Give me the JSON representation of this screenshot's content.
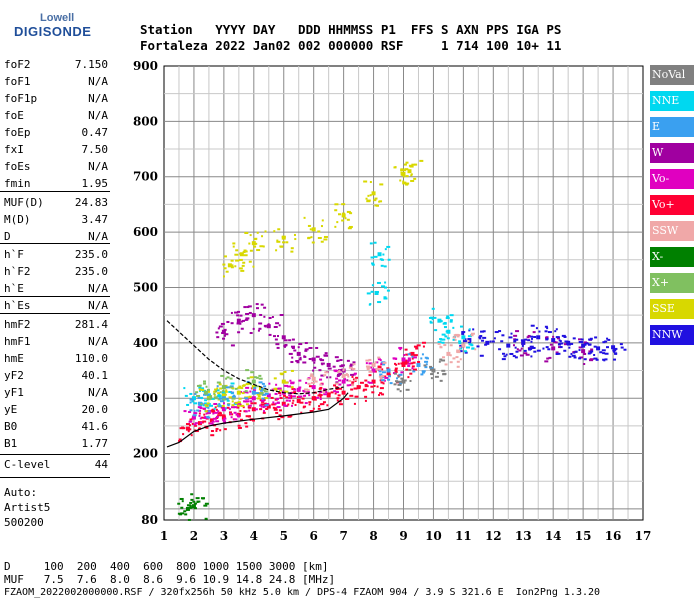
{
  "logo": {
    "top": "Lowell",
    "main": "DIGISONDE"
  },
  "header": {
    "line1": "Station   YYYY DAY   DDD HHMMSS P1  FFS S AXN PPS IGA PS",
    "line2": "Fortaleza 2022 Jan02 002 000000 RSF     1 714 100 10+ 11"
  },
  "params_group1": [
    {
      "name": "foF2",
      "value": "7.150"
    },
    {
      "name": "foF1",
      "value": "N/A"
    },
    {
      "name": "foF1p",
      "value": "N/A"
    },
    {
      "name": "foE",
      "value": "N/A"
    },
    {
      "name": "foEp",
      "value": "0.47"
    },
    {
      "name": "fxI",
      "value": "7.50"
    },
    {
      "name": "foEs",
      "value": "N/A"
    },
    {
      "name": "fmin",
      "value": "1.95"
    }
  ],
  "params_group2": [
    {
      "name": "MUF(D)",
      "value": "24.83"
    },
    {
      "name": "M(D)",
      "value": "3.47"
    },
    {
      "name": "D",
      "value": "N/A"
    }
  ],
  "params_group3": [
    {
      "name": "h`F",
      "value": "235.0"
    },
    {
      "name": "h`F2",
      "value": "235.0"
    },
    {
      "name": "h`E",
      "value": "N/A"
    },
    {
      "name": "h`Es",
      "value": "N/A"
    }
  ],
  "params_group4": [
    {
      "name": "hmF2",
      "value": "281.4"
    },
    {
      "name": "hmF1",
      "value": "N/A"
    },
    {
      "name": "hmE",
      "value": "110.0"
    },
    {
      "name": "yF2",
      "value": "40.1"
    },
    {
      "name": "yF1",
      "value": "N/A"
    },
    {
      "name": "yE",
      "value": "20.0"
    },
    {
      "name": "B0",
      "value": "41.6"
    },
    {
      "name": "B1",
      "value": "1.77"
    }
  ],
  "params_group5": [
    {
      "name": "C-level",
      "value": "44"
    }
  ],
  "auto_lines": [
    "Auto:",
    "Artist5",
    "500200"
  ],
  "legend": [
    {
      "label": "NoVal",
      "color": "#808080"
    },
    {
      "label": "NNE",
      "color": "#00d8f0"
    },
    {
      "label": "E",
      "color": "#3aa0f0"
    },
    {
      "label": "W",
      "color": "#a000a0"
    },
    {
      "label": "Vo-",
      "color": "#e000c0"
    },
    {
      "label": "Vo+",
      "color": "#ff0033"
    },
    {
      "label": "SSW",
      "color": "#f0a8a8"
    },
    {
      "label": "X-",
      "color": "#008000"
    },
    {
      "label": "X+",
      "color": "#80c060"
    },
    {
      "label": "SSE",
      "color": "#d8d800"
    },
    {
      "label": "NNW",
      "color": "#2010e0"
    }
  ],
  "footer": {
    "line1": "D     100  200  400  600  800 1000 1500 3000 [km]",
    "line2": "MUF   7.5  7.6  8.0  8.6  9.6 10.9 14.8 24.8 [MHz]",
    "line3": "FZAOM_2022002000000.RSF / 320fx256h 50 kHz 5.0 km / DPS-4 FZAOM 904 / 3.9 S 321.6 E  Ion2Png 1.3.20"
  },
  "chart_data": {
    "type": "scatter",
    "title": "",
    "xlabel": "",
    "ylabel": "",
    "xlim": [
      1,
      17
    ],
    "ylim": [
      80,
      900
    ],
    "x_ticks": [
      1,
      2,
      3,
      4,
      5,
      6,
      7,
      8,
      9,
      10,
      11,
      12,
      13,
      14,
      15,
      16,
      17
    ],
    "y_ticks": [
      80,
      200,
      300,
      400,
      500,
      600,
      700,
      800,
      900
    ],
    "grid": true,
    "series": [
      {
        "name": "Vo+",
        "color": "#ff0033",
        "points": [
          [
            1.8,
            245
          ],
          [
            2.2,
            255
          ],
          [
            2.6,
            260
          ],
          [
            3,
            265
          ],
          [
            3.5,
            270
          ],
          [
            4,
            280
          ],
          [
            4.5,
            285
          ],
          [
            5,
            290
          ],
          [
            5.5,
            295
          ],
          [
            6,
            300
          ],
          [
            6.5,
            305
          ],
          [
            7,
            310
          ],
          [
            7.5,
            320
          ],
          [
            8,
            330
          ],
          [
            8.5,
            345
          ],
          [
            9,
            360
          ],
          [
            9.3,
            380
          ]
        ]
      },
      {
        "name": "Vo-",
        "color": "#e000c0",
        "points": [
          [
            2.0,
            265
          ],
          [
            2.5,
            275
          ],
          [
            3,
            280
          ],
          [
            3.5,
            290
          ],
          [
            4,
            300
          ],
          [
            4.5,
            305
          ],
          [
            5,
            310
          ],
          [
            5.5,
            315
          ],
          [
            6,
            320
          ],
          [
            7,
            330
          ],
          [
            8,
            350
          ],
          [
            9,
            370
          ]
        ]
      },
      {
        "name": "W",
        "color": "#a000a0",
        "points": [
          [
            3,
            420
          ],
          [
            3.5,
            440
          ],
          [
            4,
            450
          ],
          [
            4.5,
            430
          ],
          [
            5,
            410
          ],
          [
            5.5,
            380
          ],
          [
            6,
            370
          ],
          [
            6.5,
            360
          ],
          [
            7,
            350
          ],
          [
            13,
            400
          ],
          [
            14,
            390
          ],
          [
            15,
            385
          ]
        ]
      },
      {
        "name": "NNW",
        "color": "#2010e0",
        "points": [
          [
            11.2,
            405
          ],
          [
            11.8,
            400
          ],
          [
            12.5,
            395
          ],
          [
            13,
            400
          ],
          [
            13.5,
            410
          ],
          [
            14,
            405
          ],
          [
            14.5,
            400
          ],
          [
            15,
            395
          ],
          [
            15.5,
            390
          ],
          [
            16,
            392
          ]
        ]
      },
      {
        "name": "NNE",
        "color": "#00d8f0",
        "points": [
          [
            2,
            300
          ],
          [
            2.5,
            305
          ],
          [
            3,
            310
          ],
          [
            8.2,
            560
          ],
          [
            8.1,
            490
          ],
          [
            10.2,
            440
          ],
          [
            10.5,
            420
          ],
          [
            11,
            410
          ]
        ]
      },
      {
        "name": "SSE",
        "color": "#d8d800",
        "points": [
          [
            2.5,
            300
          ],
          [
            3,
            305
          ],
          [
            3.5,
            310
          ],
          [
            4,
            320
          ],
          [
            5,
            330
          ],
          [
            3.2,
            540
          ],
          [
            3.6,
            560
          ],
          [
            4,
            580
          ],
          [
            5,
            590
          ],
          [
            6,
            605
          ],
          [
            7,
            630
          ],
          [
            8,
            670
          ],
          [
            9,
            705
          ],
          [
            9.2,
            710
          ]
        ]
      },
      {
        "name": "E",
        "color": "#3aa0f0",
        "points": [
          [
            2.2,
            290
          ],
          [
            3,
            300
          ],
          [
            4,
            310
          ],
          [
            8.5,
            350
          ],
          [
            9.5,
            360
          ]
        ]
      },
      {
        "name": "X+",
        "color": "#80c060",
        "points": [
          [
            2.4,
            310
          ],
          [
            3,
            320
          ],
          [
            4,
            330
          ]
        ]
      },
      {
        "name": "X-",
        "color": "#008000",
        "points": [
          [
            1.8,
            100
          ],
          [
            2.0,
            105
          ]
        ]
      },
      {
        "name": "SSW",
        "color": "#f0a8a8",
        "points": [
          [
            6,
            335
          ],
          [
            7,
            340
          ],
          [
            8,
            360
          ],
          [
            10.5,
            380
          ],
          [
            11,
            395
          ]
        ]
      },
      {
        "name": "NoVal",
        "color": "#808080",
        "points": [
          [
            9,
            330
          ],
          [
            10,
            350
          ]
        ]
      }
    ],
    "profile_curves": [
      {
        "points": [
          [
            1.1,
            440
          ],
          [
            1.5,
            420
          ],
          [
            2,
            395
          ],
          [
            2.5,
            370
          ],
          [
            3,
            350
          ],
          [
            3.5,
            335
          ],
          [
            4,
            325
          ],
          [
            4.5,
            315
          ],
          [
            5,
            310
          ],
          [
            5.5,
            308
          ],
          [
            6,
            310
          ],
          [
            6.5,
            316
          ],
          [
            7,
            320
          ]
        ]
      },
      {
        "points": [
          [
            1.1,
            212
          ],
          [
            1.5,
            220
          ],
          [
            2,
            240
          ],
          [
            2.5,
            250
          ],
          [
            3,
            255
          ],
          [
            4,
            262
          ],
          [
            5,
            268
          ],
          [
            6,
            275
          ],
          [
            6.5,
            280
          ],
          [
            7,
            300
          ],
          [
            7.15,
            310
          ]
        ]
      }
    ]
  }
}
